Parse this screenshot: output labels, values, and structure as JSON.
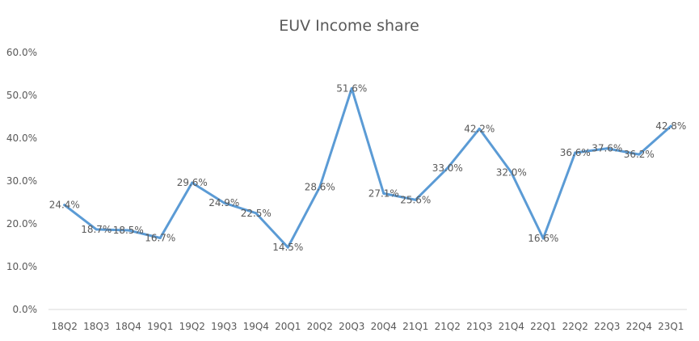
{
  "chart_data": {
    "type": "line",
    "title": "EUV Income share",
    "xlabel": "",
    "ylabel": "",
    "categories": [
      "18Q2",
      "18Q3",
      "18Q4",
      "19Q1",
      "19Q2",
      "19Q3",
      "19Q4",
      "20Q1",
      "20Q2",
      "20Q3",
      "20Q4",
      "21Q1",
      "21Q2",
      "21Q3",
      "21Q4",
      "22Q1",
      "22Q2",
      "22Q3",
      "22Q4",
      "23Q1"
    ],
    "series": [
      {
        "values": [
          24.4,
          18.7,
          18.5,
          16.7,
          29.6,
          24.9,
          22.5,
          14.5,
          28.6,
          51.6,
          27.1,
          25.6,
          33.0,
          42.2,
          32.0,
          16.6,
          36.6,
          37.6,
          36.2,
          42.8
        ],
        "color": "#5b9bd5"
      }
    ],
    "data_labels": [
      "24.4%",
      "18.7%",
      "18.5%",
      "16.7%",
      "29.6%",
      "24.9%",
      "22.5%",
      "14.5%",
      "28.6%",
      "51.6%",
      "27.1%",
      "25.6%",
      "33.0%",
      "42.2%",
      "32.0%",
      "16.6%",
      "36.6%",
      "37.6%",
      "36.2%",
      "42.8%"
    ],
    "y_ticks": [
      "0.0%",
      "10.0%",
      "20.0%",
      "30.0%",
      "40.0%",
      "50.0%",
      "60.0%"
    ],
    "ylim": [
      0,
      60
    ],
    "grid": false,
    "legend": "none"
  }
}
